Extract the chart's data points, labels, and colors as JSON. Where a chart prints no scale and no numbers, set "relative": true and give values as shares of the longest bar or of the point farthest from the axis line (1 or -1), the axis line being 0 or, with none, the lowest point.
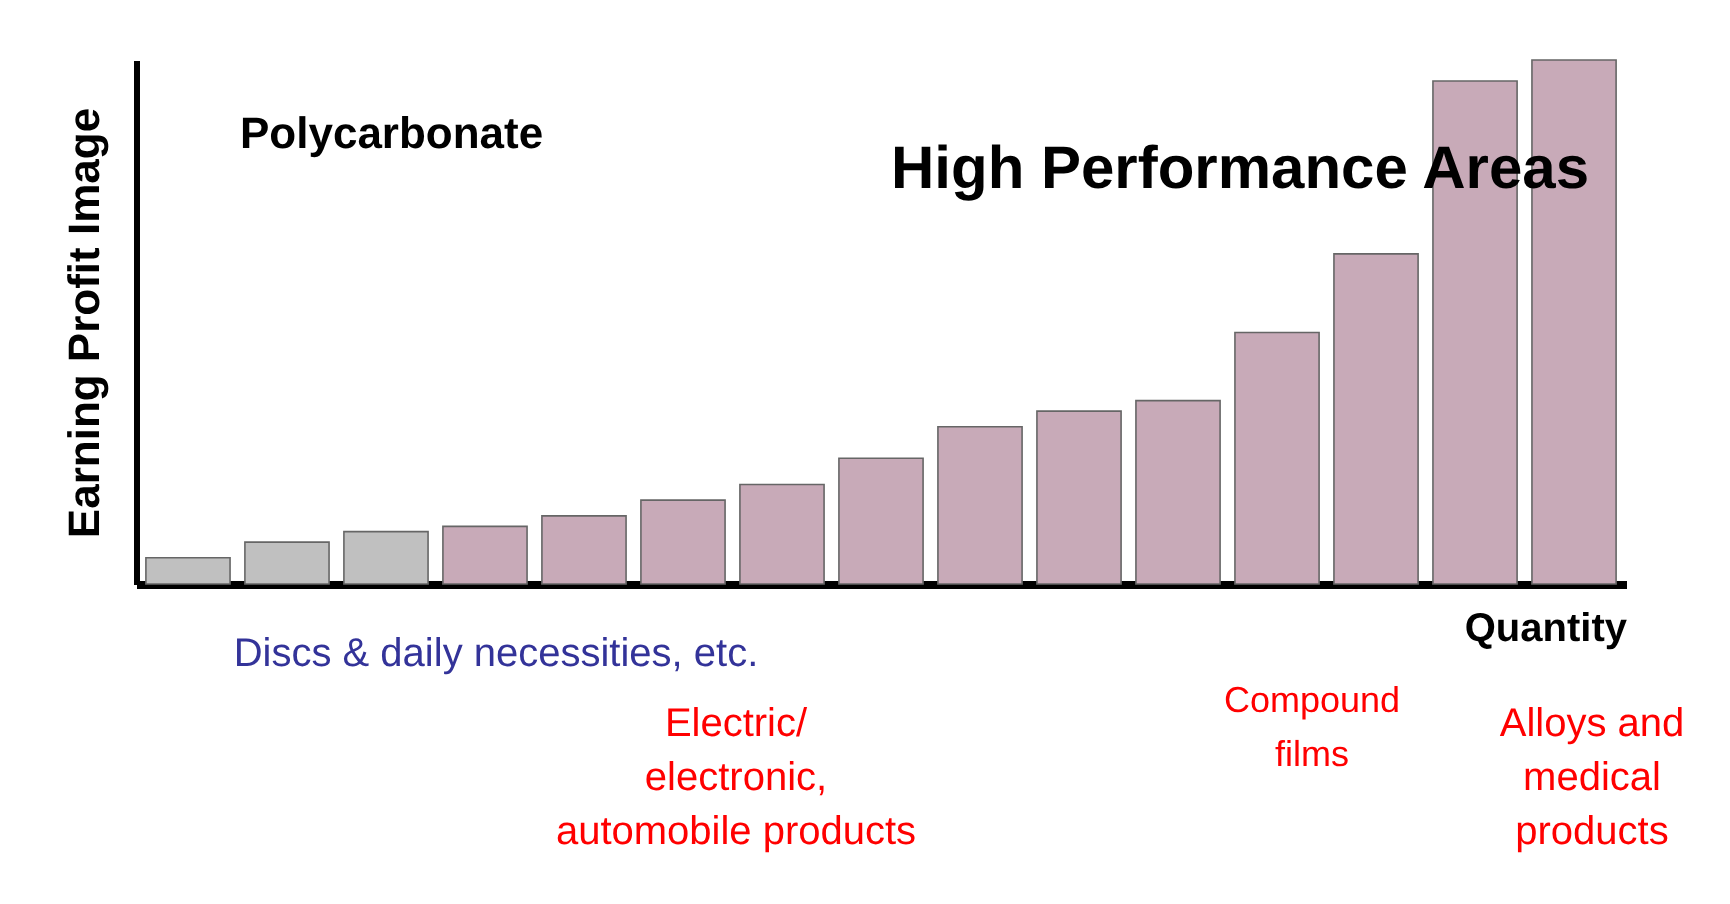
{
  "chart_data": {
    "type": "bar",
    "title": "Polycarbonate",
    "xlabel": "Quantity",
    "ylabel": "Earning Profit Image",
    "relative": true,
    "categories": [
      null,
      null,
      null,
      null,
      null,
      null,
      null,
      null,
      null,
      null,
      null,
      null,
      null,
      null,
      null
    ],
    "tick_labels": false,
    "values": [
      0.05,
      0.08,
      0.1,
      0.11,
      0.13,
      0.16,
      0.19,
      0.24,
      0.3,
      0.33,
      0.35,
      0.48,
      0.63,
      0.96,
      1
    ],
    "colors": [
      "#c0c0c0",
      "#c0c0c0",
      "#c0c0c0",
      "#c8aab8",
      "#c8aab8",
      "#c8aab8",
      "#c8aab8",
      "#c8aab8",
      "#c8aab8",
      "#c8aab8",
      "#c8aab8",
      "#c8aab8",
      "#c8aab8",
      "#c8aab8",
      "#c8aab8"
    ],
    "annotations": [
      "High Performance Areas",
      "Discs & daily necessities, etc.",
      "Electric/\nelectronic,\nautomobile products",
      "Compound\nfilms",
      "Alloys and\nmedical\nproducts"
    ]
  }
}
